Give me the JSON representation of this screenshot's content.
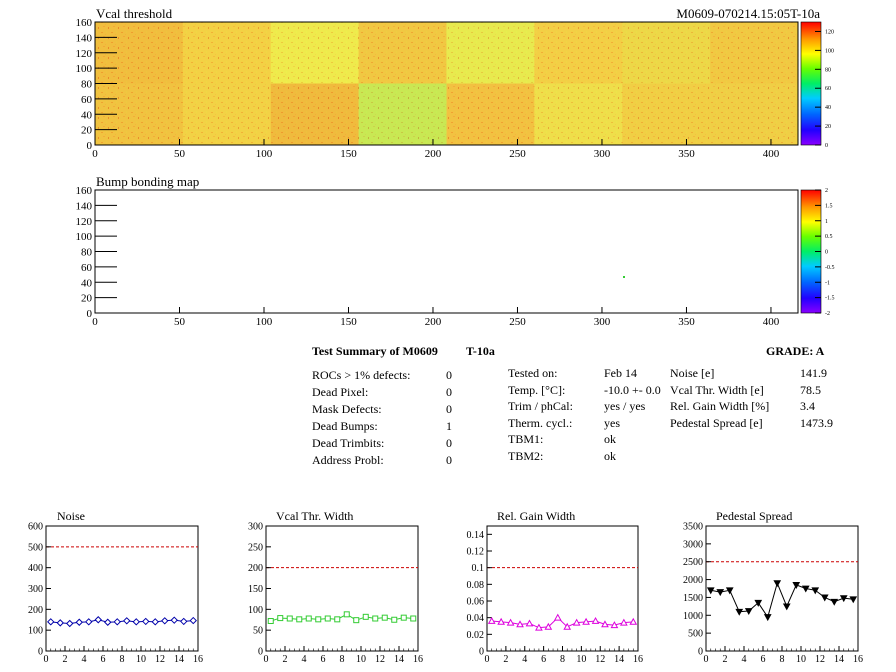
{
  "header": {
    "map1_title": "Vcal threshold",
    "map1_id": "M0609-070214.15:05T-10a",
    "map2_title": "Bump bonding map"
  },
  "colors": {
    "noise": "#0000aa",
    "vcal": "#33cc33",
    "gain": "#dd00dd",
    "pedestal": "#000000",
    "limit": "#cc0000"
  },
  "maps": [
    {
      "name": "vcal-threshold-map",
      "x_ticks": [
        "0",
        "50",
        "100",
        "150",
        "200",
        "250",
        "300",
        "350",
        "400"
      ],
      "y_ticks": [
        "0",
        "20",
        "40",
        "60",
        "80",
        "100",
        "120",
        "140",
        "160"
      ],
      "palette_ticks": [
        "0",
        "20",
        "40",
        "60",
        "80",
        "100",
        "120"
      ]
    },
    {
      "name": "bump-bonding-map",
      "x_ticks": [
        "0",
        "50",
        "100",
        "150",
        "200",
        "250",
        "300",
        "350",
        "400"
      ],
      "y_ticks": [
        "0",
        "20",
        "40",
        "60",
        "80",
        "100",
        "120",
        "140",
        "160"
      ],
      "palette_ticks": [
        "-2",
        "-1.5",
        "-1",
        "-0.5",
        "0",
        "0.5",
        "1",
        "1.5",
        "2"
      ]
    }
  ],
  "summary": {
    "title_left": "Test Summary of M0609",
    "title_temp": "T-10a",
    "grade": "GRADE:  A",
    "defects": [
      {
        "label": "ROCs > 1% defects:",
        "value": "0"
      },
      {
        "label": "Dead Pixel:",
        "value": "0"
      },
      {
        "label": "Mask Defects:",
        "value": "0"
      },
      {
        "label": "Dead Bumps:",
        "value": "1"
      },
      {
        "label": "Dead Trimbits:",
        "value": "0"
      },
      {
        "label": "Address Probl:",
        "value": "0"
      }
    ],
    "conditions": [
      {
        "label": "Tested on:",
        "value": "Feb 14"
      },
      {
        "label": "Temp. [°C]:",
        "value": "-10.0 +- 0.0"
      },
      {
        "label": "Trim / phCal:",
        "value": "yes / yes"
      },
      {
        "label": "Therm. cycl.:",
        "value": "yes"
      },
      {
        "label": "TBM1:",
        "value": "ok"
      },
      {
        "label": "TBM2:",
        "value": "ok"
      }
    ],
    "results": [
      {
        "label": "Noise [e]",
        "value": "141.9"
      },
      {
        "label": "Vcal Thr. Width [e]",
        "value": "78.5"
      },
      {
        "label": "Rel. Gain Width [%]",
        "value": "3.4"
      },
      {
        "label": "Pedestal Spread [e]",
        "value": "1473.9"
      }
    ]
  },
  "chart_data": [
    {
      "type": "line",
      "title": "Noise",
      "x": [
        0.5,
        1.5,
        2.5,
        3.5,
        4.5,
        5.5,
        6.5,
        7.5,
        8.5,
        9.5,
        10.5,
        11.5,
        12.5,
        13.5,
        14.5,
        15.5
      ],
      "values": [
        140,
        135,
        132,
        138,
        140,
        150,
        138,
        140,
        145,
        140,
        142,
        140,
        145,
        148,
        142,
        146
      ],
      "xlim": [
        0,
        16
      ],
      "ylim": [
        0,
        600
      ],
      "x_ticks": [
        "0",
        "2",
        "4",
        "6",
        "8",
        "10",
        "12",
        "14",
        "16"
      ],
      "y_ticks": [
        "0",
        "100",
        "200",
        "300",
        "400",
        "500",
        "600"
      ],
      "limit": 500,
      "marker": "diamond"
    },
    {
      "type": "line",
      "title": "Vcal Thr. Width",
      "x": [
        0.5,
        1.5,
        2.5,
        3.5,
        4.5,
        5.5,
        6.5,
        7.5,
        8.5,
        9.5,
        10.5,
        11.5,
        12.5,
        13.5,
        14.5,
        15.5
      ],
      "values": [
        72,
        79,
        78,
        76,
        78,
        76,
        78,
        76,
        88,
        74,
        82,
        78,
        80,
        75,
        80,
        78
      ],
      "xlim": [
        0,
        16
      ],
      "ylim": [
        0,
        300
      ],
      "x_ticks": [
        "0",
        "2",
        "4",
        "6",
        "8",
        "10",
        "12",
        "14",
        "16"
      ],
      "y_ticks": [
        "0",
        "50",
        "100",
        "150",
        "200",
        "250",
        "300"
      ],
      "limit": 200,
      "marker": "square"
    },
    {
      "type": "line",
      "title": "Rel. Gain Width",
      "x": [
        0.5,
        1.5,
        2.5,
        3.5,
        4.5,
        5.5,
        6.5,
        7.5,
        8.5,
        9.5,
        10.5,
        11.5,
        12.5,
        13.5,
        14.5,
        15.5
      ],
      "values": [
        0.036,
        0.035,
        0.034,
        0.032,
        0.033,
        0.028,
        0.029,
        0.04,
        0.029,
        0.034,
        0.035,
        0.036,
        0.032,
        0.031,
        0.034,
        0.035
      ],
      "xlim": [
        0,
        16
      ],
      "ylim": [
        0,
        0.15
      ],
      "x_ticks": [
        "0",
        "2",
        "4",
        "6",
        "8",
        "10",
        "12",
        "14",
        "16"
      ],
      "y_ticks": [
        "0",
        "0.02",
        "0.04",
        "0.06",
        "0.08",
        "0.1",
        "0.12",
        "0.14"
      ],
      "y_tick_values": [
        0,
        0.02,
        0.04,
        0.06,
        0.08,
        0.1,
        0.12,
        0.14
      ],
      "limit": 0.1,
      "marker": "triangle"
    },
    {
      "type": "line",
      "title": "Pedestal Spread",
      "x": [
        0.5,
        1.5,
        2.5,
        3.5,
        4.5,
        5.5,
        6.5,
        7.5,
        8.5,
        9.5,
        10.5,
        11.5,
        12.5,
        13.5,
        14.5,
        15.5
      ],
      "values": [
        1700,
        1650,
        1700,
        1100,
        1120,
        1350,
        950,
        1900,
        1250,
        1850,
        1750,
        1700,
        1500,
        1380,
        1480,
        1450
      ],
      "xlim": [
        0,
        16
      ],
      "ylim": [
        0,
        3500
      ],
      "x_ticks": [
        "0",
        "2",
        "4",
        "6",
        "8",
        "10",
        "12",
        "14",
        "16"
      ],
      "y_ticks": [
        "0",
        "500",
        "1000",
        "1500",
        "2000",
        "2500",
        "3000",
        "3500"
      ],
      "limit": 2500,
      "marker": "inverted-triangle"
    }
  ]
}
